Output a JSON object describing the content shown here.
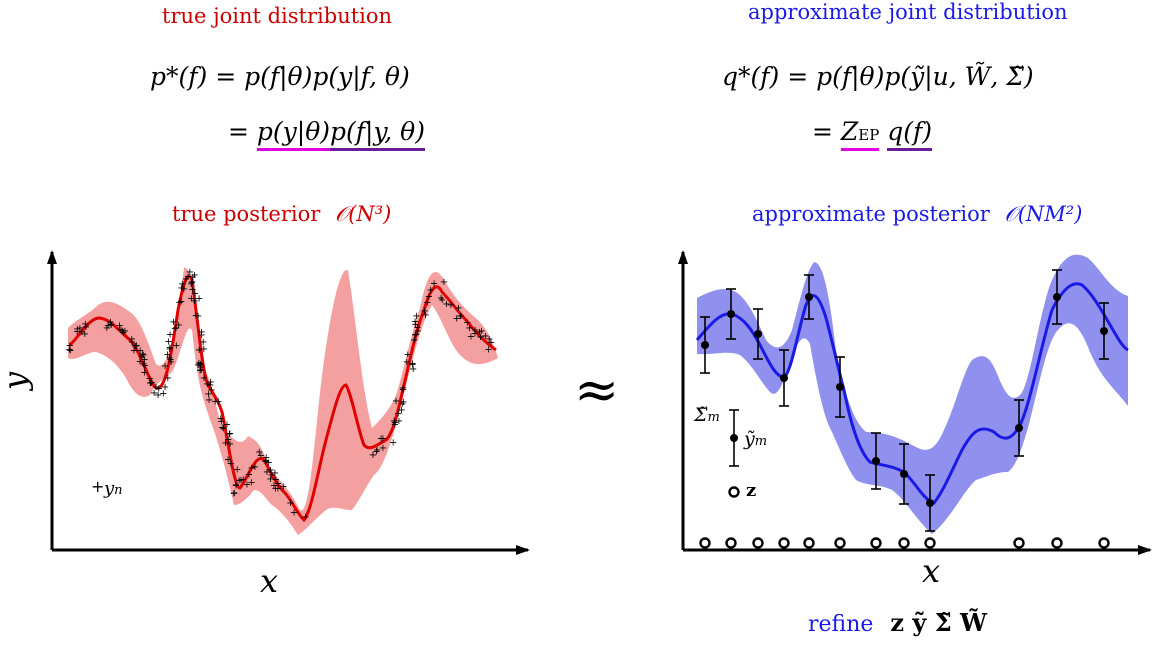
{
  "left": {
    "heading": "true joint distribution",
    "eq1_lhs": "p*(f) =",
    "eq1_rhs": "p(f|θ)p(y|f, θ)",
    "eq2_eq": "=",
    "eq2_term1": "p(y|θ)",
    "eq2_term2": "p(f|y, θ)",
    "posterior_label": "true posterior",
    "complexity": "𝒪(N³)",
    "data_legend": "y",
    "data_legend_sub": "n",
    "x_label": "x",
    "y_label": "y"
  },
  "right": {
    "heading": "approximate joint distribution",
    "eq1_lhs": "q*(f) =",
    "eq1_rhs": "p(f|θ)p(ỹ|u, W̃, Σ̃)",
    "eq2_eq": "=",
    "eq2_term1": "Z",
    "eq2_term1_sub": "EP",
    "eq2_term2": "q(f)",
    "posterior_label": "approximate posterior",
    "complexity": "𝒪(NM²)",
    "sigma_label": "Σ̃",
    "sigma_sub": "m",
    "ytilde_label": "ỹ",
    "ytilde_sub": "m",
    "z_legend": "z",
    "x_label": "x",
    "refine_label": "refine",
    "refine_vars": "z  ỹ  Σ̃  W̃"
  },
  "approx_symbol": "≈",
  "colors": {
    "red": "#cc0000",
    "blue": "#1a1ae6",
    "magenta": "#e000e0",
    "purple": "#6a1b9a"
  }
}
